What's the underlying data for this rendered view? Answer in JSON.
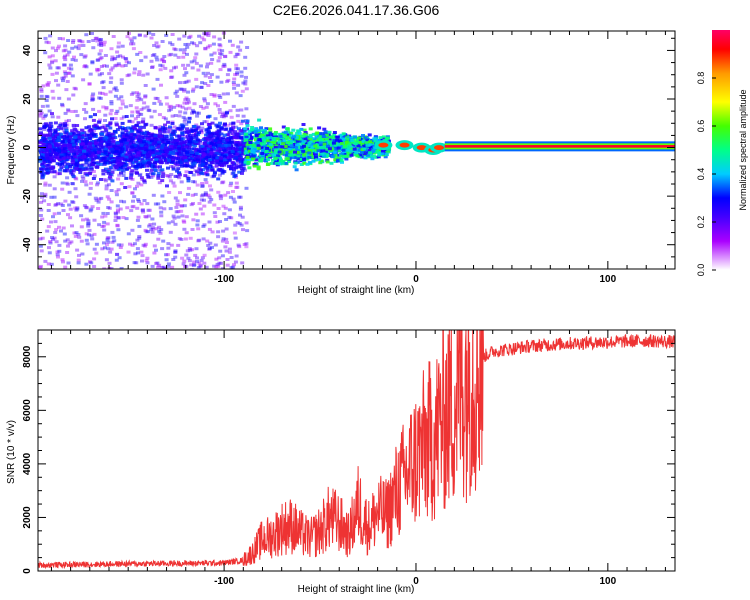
{
  "title": "C2E6.2026.041.17.36.G06",
  "chart_data": [
    {
      "type": "heatmap",
      "title": "C2E6.2026.041.17.36.G06",
      "xlabel": "Height of straight line (km)",
      "ylabel": "Frequency (Hz)",
      "xlim": [
        -197,
        135
      ],
      "ylim": [
        -50,
        48
      ],
      "x_ticks": [
        -100,
        0,
        100
      ],
      "y_ticks": [
        -40,
        -20,
        0,
        20,
        40
      ],
      "colorbar": {
        "label": "Normalized spectral amplitude",
        "range": [
          0,
          1
        ],
        "ticks": [
          "0.0",
          "0.2",
          "0.4",
          "0.6",
          "0.8"
        ]
      },
      "ridge": {
        "frequency_hz": 0.5,
        "x_start": 15,
        "x_end": 135,
        "amplitude": 0.95
      }
    },
    {
      "type": "line",
      "xlabel": "Height of straight line (km)",
      "ylabel": "SNR (10 * v/v)",
      "xlim": [
        -197,
        135
      ],
      "ylim": [
        0,
        9000
      ],
      "x_ticks": [
        -100,
        0,
        100
      ],
      "y_ticks": [
        0,
        2000,
        4000,
        6000,
        8000
      ],
      "color": "#ee3333",
      "series": [
        {
          "name": "SNR",
          "x": [
            -197,
            -150,
            -100,
            -90,
            -85,
            -80,
            -75,
            -70,
            -65,
            -60,
            -55,
            -50,
            -45,
            -40,
            -35,
            -30,
            -25,
            -20,
            -15,
            -10,
            -5,
            0,
            5,
            10,
            15,
            20,
            25,
            30,
            35,
            40,
            50,
            60,
            80,
            100,
            120,
            135
          ],
          "values": [
            220,
            270,
            300,
            400,
            700,
            1200,
            1300,
            1600,
            1700,
            1400,
            1200,
            1500,
            2000,
            1800,
            1300,
            2500,
            1600,
            2200,
            2100,
            3000,
            3600,
            4200,
            4700,
            5000,
            5900,
            6400,
            7100,
            7700,
            8000,
            8200,
            8300,
            8400,
            8500,
            8550,
            8600,
            8550
          ]
        }
      ]
    }
  ]
}
